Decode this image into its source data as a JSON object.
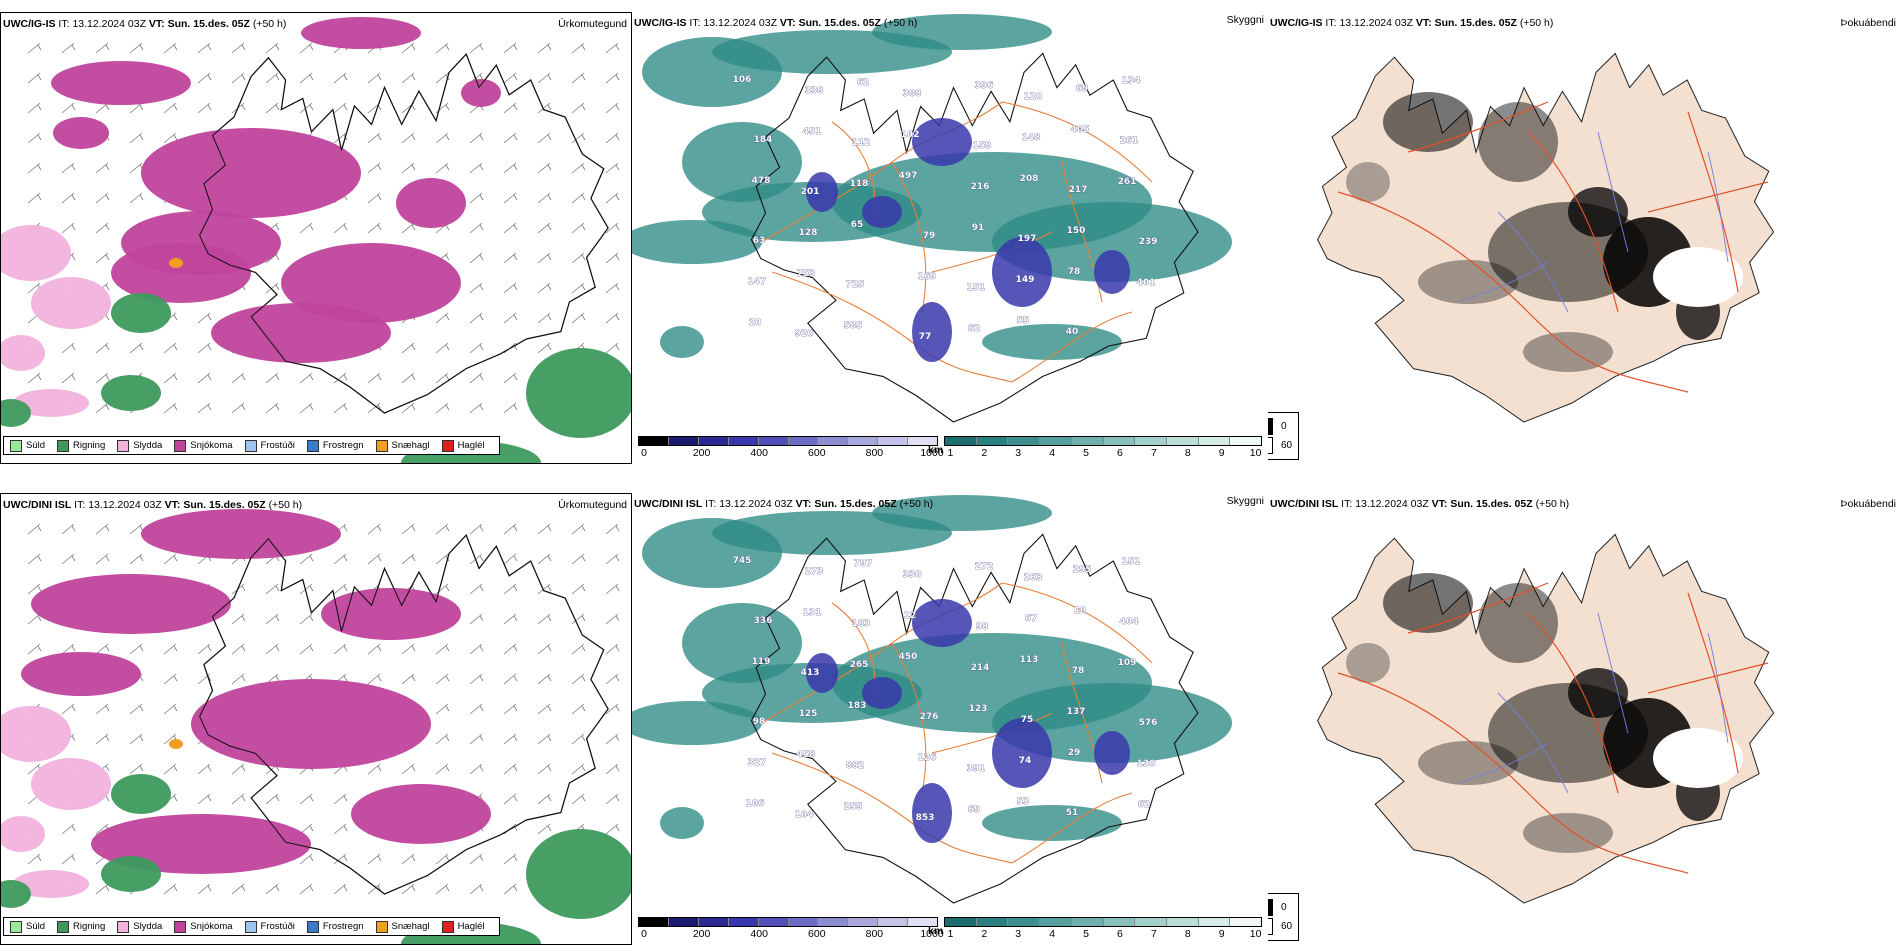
{
  "rows": [
    {
      "model": "UWC/IG-IS",
      "it_label": "IT:",
      "it_value": "13.12.2024 03Z",
      "vt_label": "VT:",
      "vt_value": "Sun. 15.des. 05Z",
      "lead": "(+50 h)",
      "cloud_values": [
        "106",
        "338",
        "62",
        "308",
        "396",
        "120",
        "69",
        "134",
        "184",
        "451",
        "112",
        "102",
        "159",
        "148",
        "405",
        "261",
        "478",
        "201",
        "118",
        "497",
        "216",
        "208",
        "217",
        "261",
        "63",
        "128",
        "65",
        "79",
        "91",
        "197",
        "150",
        "239",
        "147",
        "753",
        "725",
        "169",
        "151",
        "149",
        "78",
        "401",
        "20",
        "920",
        "585",
        "77",
        "62",
        "55",
        "40"
      ]
    },
    {
      "model": "UWC/DINI ISL",
      "it_label": "IT:",
      "it_value": "13.12.2024 03Z",
      "vt_label": "VT:",
      "vt_value": "Sun. 15.des. 05Z",
      "lead": "(+50 h)",
      "cloud_values": [
        "745",
        "273",
        "797",
        "330",
        "272",
        "263",
        "295",
        "151",
        "336",
        "131",
        "183",
        "12",
        "98",
        "67",
        "10",
        "404",
        "119",
        "413",
        "265",
        "450",
        "214",
        "113",
        "78",
        "109",
        "98",
        "125",
        "183",
        "276",
        "123",
        "75",
        "137",
        "576",
        "327",
        "458",
        "882",
        "126",
        "391",
        "74",
        "29",
        "130",
        "106",
        "104",
        "255",
        "853",
        "69",
        "53",
        "51",
        "62"
      ]
    }
  ],
  "field_titles": {
    "precip_type": "Úrkomutegund",
    "visibility": "Skyggni",
    "fog": "Þokuábendi"
  },
  "precip_legend": [
    {
      "label": "Súld",
      "color": "#9be89b"
    },
    {
      "label": "Rigning",
      "color": "#3d9a5e"
    },
    {
      "label": "Slydda",
      "color": "#f2b2dc"
    },
    {
      "label": "Snjókoma",
      "color": "#c0439c"
    },
    {
      "label": "Frostúði",
      "color": "#9cc6f0"
    },
    {
      "label": "Frostregn",
      "color": "#3a7ac8"
    },
    {
      "label": "Snæhagl",
      "color": "#f0a020"
    },
    {
      "label": "Haglél",
      "color": "#e02020"
    }
  ],
  "cloudbase_scale": {
    "unit": "m",
    "ticks": [
      "0",
      "200",
      "400",
      "600",
      "800",
      "1000"
    ],
    "colors": [
      "#000000",
      "#1a1a6e",
      "#2a2a92",
      "#3838ac",
      "#5050b8",
      "#6c6cc4",
      "#8c8cd0",
      "#a8a8dc",
      "#c4c4e8",
      "#e0e0f4"
    ]
  },
  "visibility_scale": {
    "unit": "km",
    "ticks": [
      "1",
      "2",
      "3",
      "4",
      "5",
      "6",
      "7",
      "8",
      "9",
      "10"
    ],
    "colors": [
      "#1c6e6e",
      "#2a8080",
      "#3e9090",
      "#56a0a0",
      "#6eb0ae",
      "#88c0bc",
      "#a2d0ca",
      "#bcded8",
      "#d6ece8",
      "#f0f8f6"
    ]
  },
  "fog_legend": [
    {
      "value": "0",
      "color": "#000000"
    },
    {
      "value": "60",
      "color": "#ffffff"
    }
  ],
  "colors": {
    "snow": "#c0439c",
    "rain": "#3d9a5e",
    "sleet": "#f2b2dc",
    "land": "#f3e0d1",
    "roads": "#e8803a",
    "lowcloud": "#3838ac",
    "teal": "#2e8a84"
  }
}
